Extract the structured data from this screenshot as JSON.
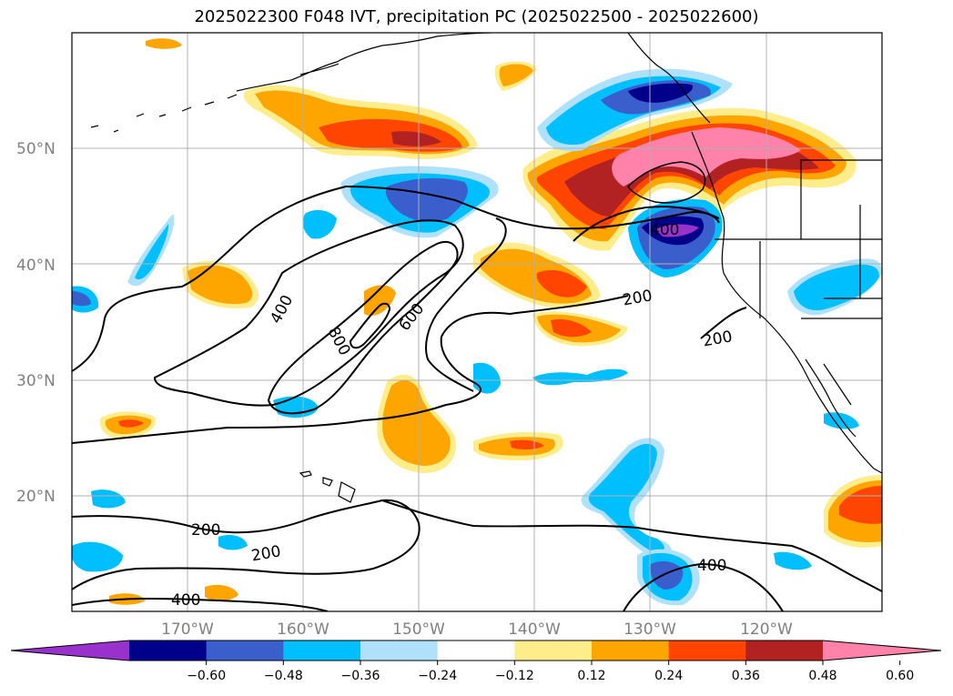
{
  "title": "2025022300 F048 IVT, precipitation PC (2025022500 - 2025022600)",
  "latitude_labels": [
    "50°N",
    "40°N",
    "30°N",
    "20°N"
  ],
  "longitude_labels": [
    "170°W",
    "160°W",
    "150°W",
    "140°W",
    "130°W",
    "120°W"
  ],
  "ivt_contour_labels": [
    "400",
    "800",
    "600",
    "200",
    "200",
    "200",
    "200",
    "400",
    "400",
    "400"
  ],
  "colorbar": {
    "colors": [
      "#9932CC",
      "#00008B",
      "#3A5FCD",
      "#00BFFF",
      "#AFE1FA",
      "#FFFFFF",
      "#FFEC8B",
      "#FFA500",
      "#FF4500",
      "#B22222",
      "#FF82AB"
    ],
    "tick_labels": [
      "−0.60",
      "−0.48",
      "−0.36",
      "−0.24",
      "−0.12",
      "0.12",
      "0.24",
      "0.36",
      "0.48",
      "0.60"
    ]
  },
  "map_extent": {
    "lon_min": -180,
    "lon_max": -110,
    "lat_min": 10,
    "lat_max": 60
  },
  "gridlines": true
}
